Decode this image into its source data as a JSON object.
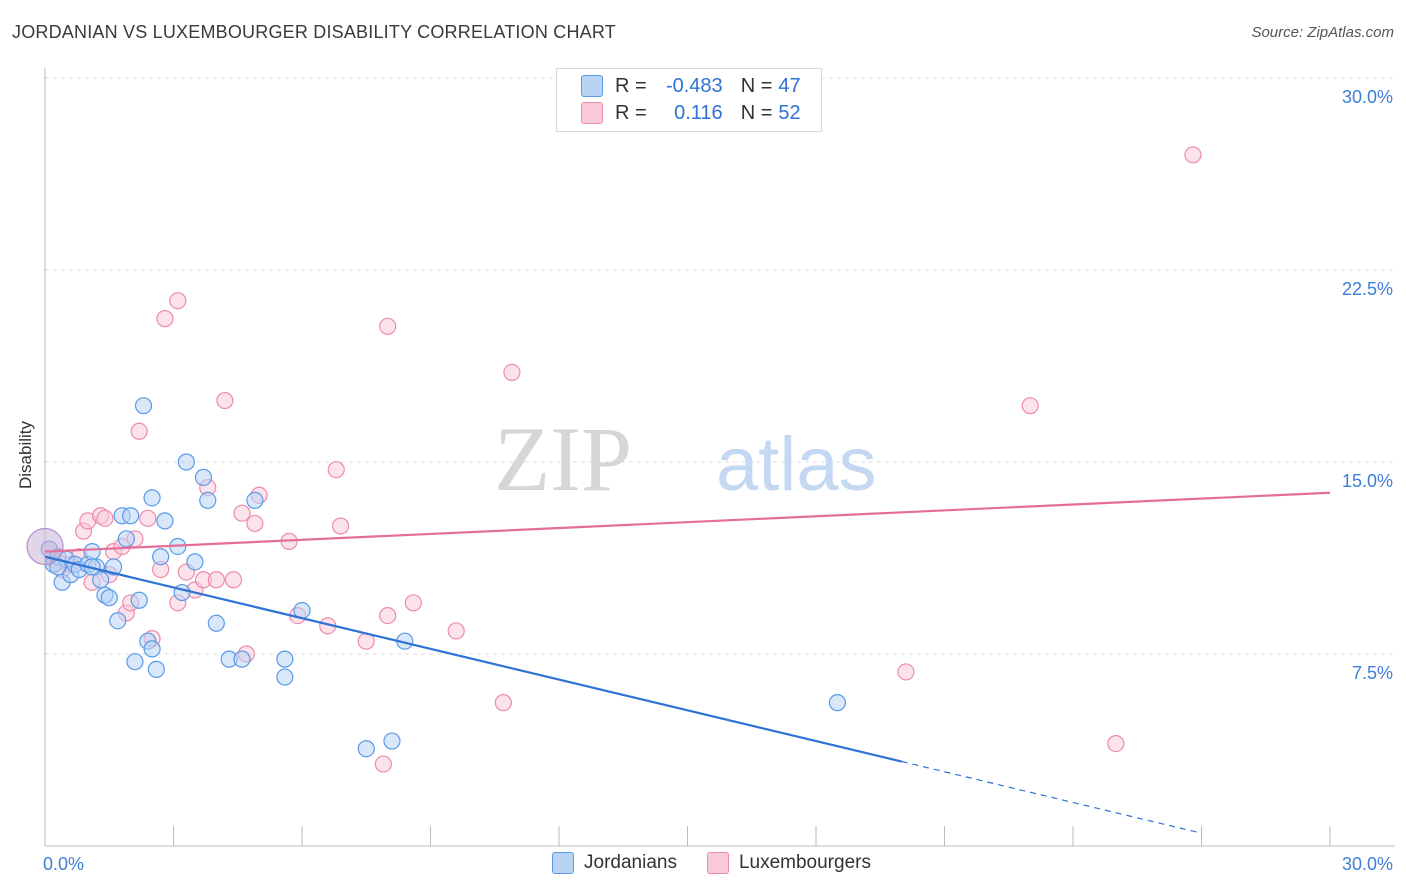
{
  "title": "JORDANIAN VS LUXEMBOURGER DISABILITY CORRELATION CHART",
  "source": "Source: ZipAtlas.com",
  "watermark": {
    "zip": "ZIP",
    "atlas": "atlas"
  },
  "legend_top": [
    {
      "r_label": "R =",
      "r_value": "-0.483",
      "n_label": "N =",
      "n_value": "47"
    },
    {
      "r_label": "R =",
      "r_value": "0.116",
      "n_label": "N =",
      "n_value": "52"
    }
  ],
  "legend_bottom": [
    "Jordanians",
    "Luxembourgers"
  ],
  "colors": {
    "blue_fill": "#b8d4f5",
    "blue_stroke": "#5a9ae8",
    "blue_line": "#2f72d6",
    "pink_fill": "#f9cad9",
    "pink_stroke": "#ee8cab",
    "pink_line": "#e46f96",
    "tick_label": "#3d7fd6",
    "grid": "#dddddd"
  },
  "chart_data": {
    "type": "scatter",
    "title": "JORDANIAN VS LUXEMBOURGER DISABILITY CORRELATION CHART",
    "xlabel": "",
    "ylabel": "Disability",
    "xlim": [
      0,
      30
    ],
    "ylim": [
      0,
      30
    ],
    "x_tick_labels": [
      "0.0%",
      "30.0%"
    ],
    "y_ticks": [
      7.5,
      15.0,
      22.5,
      30.0
    ],
    "y_tick_labels": [
      "7.5%",
      "15.0%",
      "22.5%",
      "30.0%"
    ],
    "grid": true,
    "legend": "top-center",
    "series": [
      {
        "name": "Jordanians",
        "r": -0.483,
        "n": 47,
        "trend": {
          "x": [
            0,
            20
          ],
          "y": [
            11.3,
            3.3
          ],
          "dashed_to": [
            27,
            0.5
          ]
        },
        "points": [
          [
            0.1,
            11.6
          ],
          [
            0.2,
            11.0
          ],
          [
            0.3,
            11.3
          ],
          [
            0.4,
            10.3
          ],
          [
            0.5,
            11.2
          ],
          [
            0.6,
            10.6
          ],
          [
            0.7,
            11.0
          ],
          [
            0.8,
            10.8
          ],
          [
            1.0,
            11.0
          ],
          [
            1.1,
            11.5
          ],
          [
            1.2,
            10.9
          ],
          [
            1.3,
            10.4
          ],
          [
            1.4,
            9.8
          ],
          [
            1.5,
            9.7
          ],
          [
            1.6,
            10.9
          ],
          [
            1.7,
            8.8
          ],
          [
            1.8,
            12.9
          ],
          [
            1.9,
            12.0
          ],
          [
            2.0,
            12.9
          ],
          [
            2.1,
            7.2
          ],
          [
            2.2,
            9.6
          ],
          [
            2.3,
            17.2
          ],
          [
            2.4,
            8.0
          ],
          [
            2.5,
            7.7
          ],
          [
            2.5,
            13.6
          ],
          [
            2.6,
            6.9
          ],
          [
            2.7,
            11.3
          ],
          [
            2.8,
            12.7
          ],
          [
            3.1,
            11.7
          ],
          [
            3.2,
            9.9
          ],
          [
            3.3,
            15.0
          ],
          [
            3.5,
            11.1
          ],
          [
            3.7,
            14.4
          ],
          [
            3.8,
            13.5
          ],
          [
            4.0,
            8.7
          ],
          [
            4.3,
            7.3
          ],
          [
            4.6,
            7.3
          ],
          [
            4.9,
            13.5
          ],
          [
            5.6,
            6.6
          ],
          [
            5.6,
            7.3
          ],
          [
            6.0,
            9.2
          ],
          [
            7.5,
            3.8
          ],
          [
            8.1,
            4.1
          ],
          [
            8.4,
            8.0
          ],
          [
            18.5,
            5.6
          ],
          [
            0.3,
            10.9
          ],
          [
            1.1,
            10.9
          ]
        ]
      },
      {
        "name": "Luxembourgers",
        "r": 0.116,
        "n": 52,
        "trend": {
          "x": [
            0,
            30
          ],
          "y": [
            11.5,
            13.8
          ]
        },
        "points": [
          [
            0.2,
            11.2
          ],
          [
            0.4,
            10.8
          ],
          [
            0.6,
            11.0
          ],
          [
            0.8,
            11.3
          ],
          [
            0.9,
            12.3
          ],
          [
            1.0,
            12.7
          ],
          [
            1.1,
            10.3
          ],
          [
            1.3,
            12.9
          ],
          [
            1.4,
            12.8
          ],
          [
            1.6,
            11.5
          ],
          [
            1.8,
            11.7
          ],
          [
            1.9,
            9.1
          ],
          [
            2.0,
            9.5
          ],
          [
            2.1,
            12.0
          ],
          [
            2.2,
            16.2
          ],
          [
            2.4,
            12.8
          ],
          [
            2.5,
            8.1
          ],
          [
            2.7,
            10.8
          ],
          [
            2.8,
            20.6
          ],
          [
            3.1,
            21.3
          ],
          [
            3.1,
            9.5
          ],
          [
            3.3,
            10.7
          ],
          [
            3.5,
            10.0
          ],
          [
            3.7,
            10.4
          ],
          [
            3.8,
            14.0
          ],
          [
            4.0,
            10.4
          ],
          [
            4.2,
            17.4
          ],
          [
            4.4,
            10.4
          ],
          [
            4.6,
            13.0
          ],
          [
            4.7,
            7.5
          ],
          [
            4.9,
            12.6
          ],
          [
            5.0,
            13.7
          ],
          [
            5.7,
            11.9
          ],
          [
            5.9,
            9.0
          ],
          [
            6.6,
            8.6
          ],
          [
            6.8,
            14.7
          ],
          [
            6.9,
            12.5
          ],
          [
            7.5,
            8.0
          ],
          [
            7.9,
            3.2
          ],
          [
            8.0,
            20.3
          ],
          [
            8.0,
            9.0
          ],
          [
            8.6,
            9.5
          ],
          [
            9.6,
            8.4
          ],
          [
            10.7,
            5.6
          ],
          [
            10.9,
            18.5
          ],
          [
            20.1,
            6.8
          ],
          [
            23.0,
            17.2
          ],
          [
            25.0,
            4.0
          ],
          [
            26.8,
            27.0
          ],
          [
            0.1,
            11.6
          ],
          [
            0.3,
            11.1
          ],
          [
            1.5,
            10.6
          ]
        ]
      }
    ]
  }
}
